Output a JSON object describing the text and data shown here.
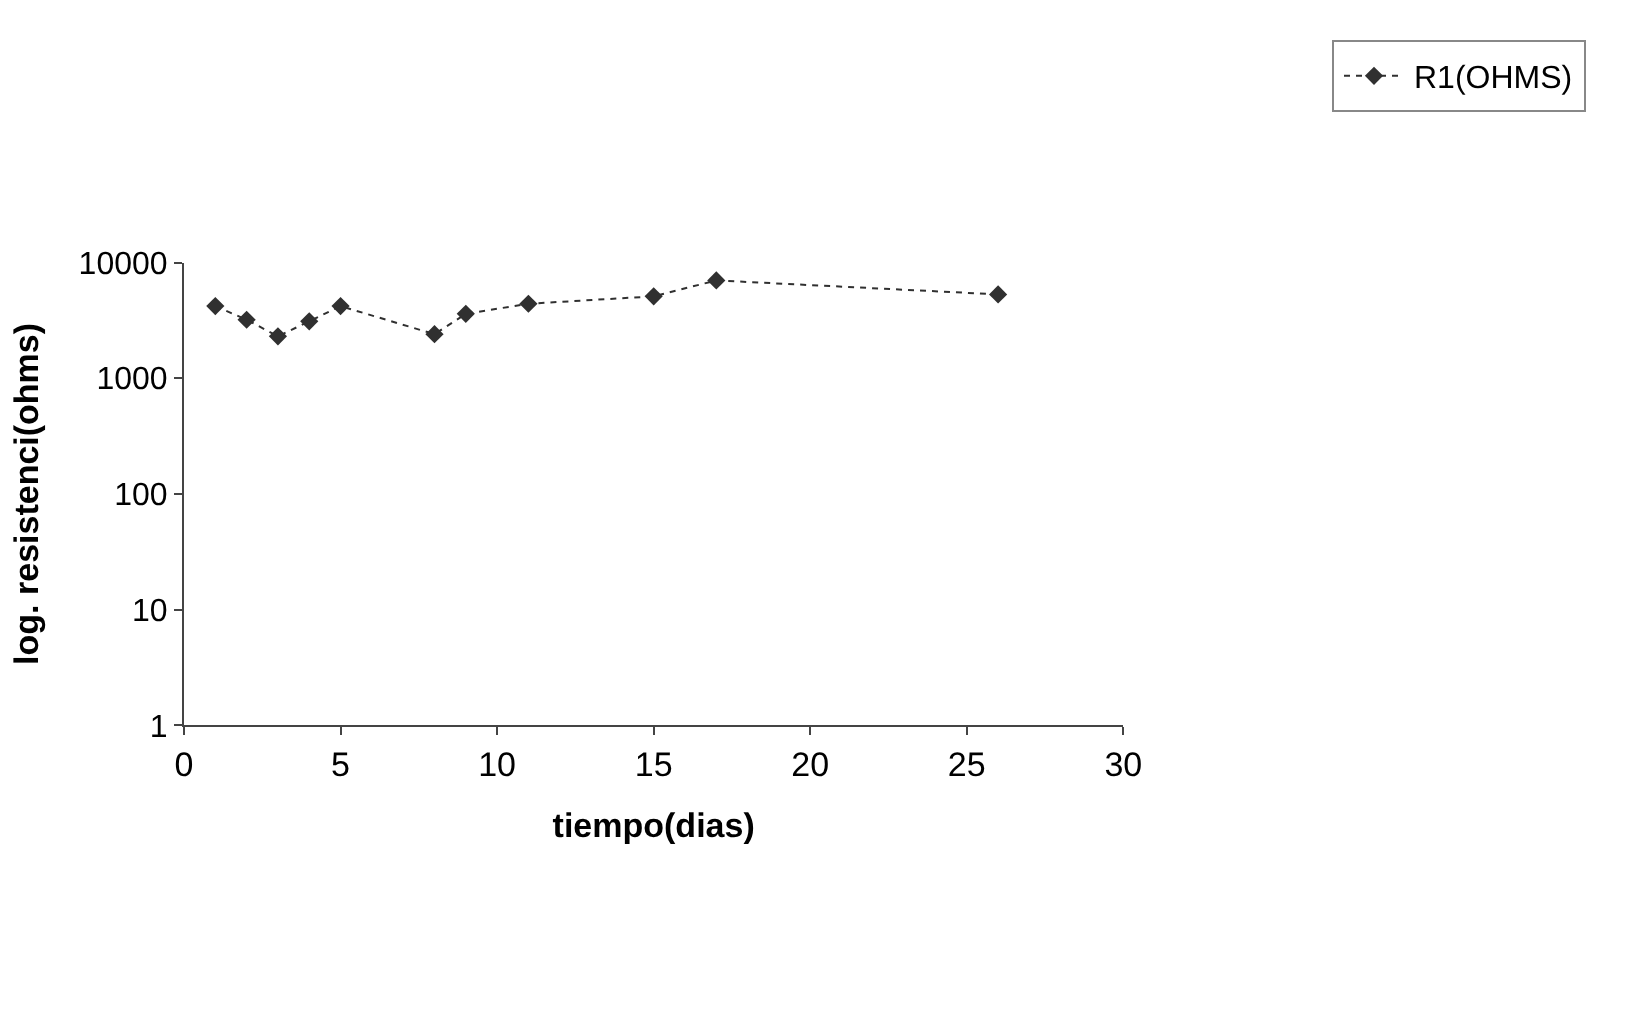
{
  "chart_data": {
    "type": "line",
    "xlabel": "tiempo(dias)",
    "ylabel": "log. resistenci(ohms)",
    "x": [
      1,
      2,
      3,
      4,
      5,
      8,
      9,
      11,
      15,
      17,
      26
    ],
    "series": [
      {
        "name": "R1(OHMS)",
        "color": "#303030",
        "values": [
          4200,
          3200,
          2300,
          3100,
          4200,
          2400,
          3600,
          4400,
          5100,
          7000,
          5300
        ]
      }
    ],
    "xlim": [
      0,
      30
    ],
    "xticks": [
      0,
      5,
      10,
      15,
      20,
      25,
      30
    ],
    "ylim": [
      1,
      10000
    ],
    "yticks": [
      1,
      10,
      100,
      1000,
      10000
    ],
    "log": "y",
    "legend": "top right",
    "marker": "diamond",
    "line_style": "dotted"
  }
}
